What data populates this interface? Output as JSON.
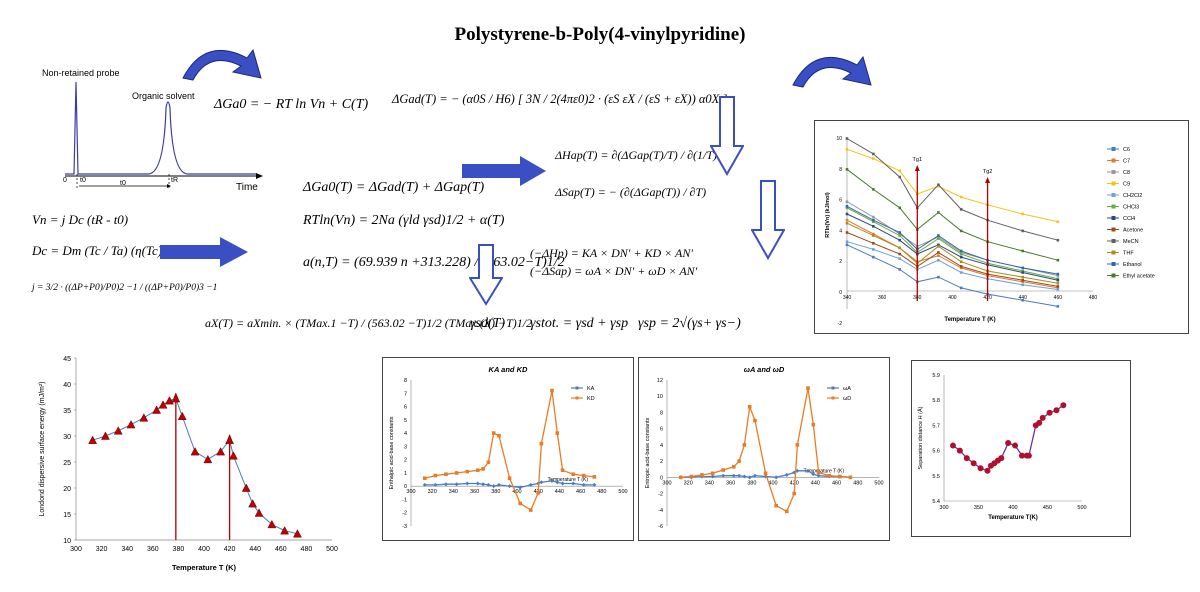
{
  "title": "Polystyrene-b-Poly(4-vinylpyridine)",
  "chromatogram": {
    "probe_label": "Non-retained probe",
    "solvent_label": "Organic solvent",
    "time_label": "Time",
    "t0_axis": "0",
    "t_mark": "t0",
    "t0_span": "t0",
    "tR_mark": "tR"
  },
  "equations": {
    "e1": "ΔGa0 = − RT ln Vn + C(T)",
    "e2": "ΔGad(T) = − (α0S / H6) [ 3N / 2(4πε0)2 · (εS εX / (εS + εX)) α0X ]",
    "e3": "ΔGa0(T) = ΔGad(T) + ΔGap(T)",
    "e4": "RTln(Vn) = 2Na (γld γsd)1/2 + α(T)",
    "e5": "a(n,T) = (69.939 n +313.228) / (563.02−T)1/2",
    "e6a": "ΔHap(T) = ∂(ΔGap(T)/T) / ∂(1/T)",
    "e6b": "ΔSap(T) = − (∂(ΔGap(T)) / ∂T)",
    "e7a": "(−ΔHp) = KA × DN′ + KD × AN′",
    "e7b": "(−ΔSap) = ωA × DN′ + ωD × AN′",
    "e8": "aX(T) = aXmin. × (TMax.1 −T) / (563.02 −T)1/2 (TMax.(X) −T)1/2",
    "e9": "γsd(T)",
    "e10": "γstot. = γsd + γsp",
    "e11": "γsp = 2√(γs+ γs−)",
    "vn": "Vn = j Dc (tR - t0)",
    "dc": "Dc = Dm (Tc / Ta) (η(Tc) / η(Ta))",
    "j": "j = 3/2 · ((ΔP+P0)/P0)2 −1 / ((ΔP+P0)/P0)3 −1"
  },
  "chart_top": {
    "type": "line",
    "ylabel": "RTln(Vn) (kJ/mol)",
    "xlabel": "Temperature T (K)",
    "x_ticks": [
      "340",
      "360",
      "380",
      "400",
      "420",
      "440",
      "460",
      "480"
    ],
    "x_first": "340",
    "xlim": [
      340,
      480
    ],
    "x_tick_values": [
      340,
      360,
      380,
      400,
      420,
      440,
      460,
      480
    ],
    "y_ticks": [
      "0",
      "2",
      "4",
      "6",
      "8",
      "10"
    ],
    "y_extra": "-2",
    "ylim": [
      0,
      10
    ],
    "tg1_label": "Tg1",
    "tg2_label": "Tg2",
    "tg1": 380,
    "tg2": 420,
    "series": [
      {
        "name": "C6",
        "color": "#4a7cc0",
        "values": [
          3.0,
          2.2,
          1.4,
          0.6,
          0.9,
          0.2,
          -0.2,
          -0.6,
          -1.0
        ]
      },
      {
        "name": "C7",
        "color": "#e07a2c",
        "values": [
          4.6,
          3.7,
          2.8,
          1.9,
          2.3,
          1.5,
          1.0,
          0.6,
          0.2
        ]
      },
      {
        "name": "C8",
        "color": "#9a9a9a",
        "values": [
          5.8,
          4.8,
          3.7,
          2.9,
          3.5,
          2.5,
          2.0,
          1.5,
          1.0
        ]
      },
      {
        "name": "C9",
        "color": "#f2c418",
        "values": [
          9.2,
          8.6,
          7.8,
          6.3,
          6.8,
          6.1,
          5.6,
          5.0,
          4.5
        ]
      },
      {
        "name": "CH2Cl2",
        "color": "#6fa3d8",
        "values": [
          3.2,
          2.7,
          2.1,
          1.4,
          2.0,
          1.2,
          0.8,
          0.4,
          0.1
        ]
      },
      {
        "name": "CHCl3",
        "color": "#6aaa44",
        "values": [
          5.4,
          4.5,
          3.6,
          2.5,
          3.4,
          2.4,
          1.8,
          1.3,
          0.8
        ]
      },
      {
        "name": "CCl4",
        "color": "#2b4b80",
        "values": [
          5.0,
          4.2,
          3.3,
          2.4,
          3.0,
          2.2,
          1.7,
          1.2,
          0.7
        ]
      },
      {
        "name": "Acetone",
        "color": "#9c4a1c",
        "values": [
          3.8,
          3.1,
          2.4,
          1.6,
          2.5,
          1.6,
          1.1,
          0.7,
          0.3
        ]
      },
      {
        "name": "MeCN",
        "color": "#606060",
        "values": [
          9.9,
          8.9,
          7.4,
          5.4,
          6.9,
          5.3,
          4.6,
          3.9,
          3.3
        ]
      },
      {
        "name": "THF",
        "color": "#b08a1c",
        "values": [
          4.4,
          3.6,
          2.8,
          1.8,
          2.9,
          1.9,
          1.3,
          0.9,
          0.5
        ]
      },
      {
        "name": "Ethanol",
        "color": "#2f6aa8",
        "values": [
          5.5,
          4.6,
          3.8,
          2.7,
          3.6,
          2.6,
          2.0,
          1.5,
          1.1
        ]
      },
      {
        "name": "Ethyl acetate",
        "color": "#4a7a2a",
        "values": [
          7.9,
          6.6,
          5.4,
          4.0,
          5.1,
          3.9,
          3.2,
          2.6,
          2.0
        ]
      }
    ]
  },
  "chart_london": {
    "type": "scatter",
    "ylabel": "Londond dispersive surface energy (mJ/m²)",
    "xlabel": "Temperature T (K)",
    "x_ticks": [
      "300",
      "320",
      "340",
      "360",
      "380",
      "400",
      "420",
      "440",
      "460",
      "480",
      "500"
    ],
    "y_ticks": [
      "10",
      "15",
      "20",
      "25",
      "30",
      "35",
      "40",
      "45"
    ],
    "xlim": [
      300,
      500
    ],
    "ylim": [
      10,
      45
    ],
    "marker_color": "#c00000",
    "x": [
      313,
      323,
      333,
      343,
      353,
      363,
      368,
      373,
      378,
      383,
      393,
      403,
      413,
      420,
      423,
      433,
      438,
      443,
      453,
      463,
      473
    ],
    "y": [
      29.2,
      30.0,
      31.0,
      32.2,
      33.5,
      35.0,
      36.0,
      36.8,
      37.2,
      33.8,
      27.0,
      25.5,
      27.0,
      29.2,
      26.2,
      20.0,
      17.0,
      15.2,
      13.0,
      11.8,
      11.2
    ],
    "arrows": [
      378,
      420
    ]
  },
  "chart_kakd": {
    "type": "line",
    "title": "KA and KD",
    "ylabel": "Enthalpic acid-base constants",
    "xlabel_inner": "Temperature T (K)",
    "x_ticks": [
      "300",
      "320",
      "340",
      "360",
      "380",
      "400",
      "420",
      "440",
      "460",
      "480",
      "500"
    ],
    "x_first": "300",
    "y_ticks": [
      "-3",
      "-2",
      "-1",
      "0",
      "1",
      "2",
      "3",
      "4",
      "5",
      "6",
      "7",
      "8"
    ],
    "xlim": [
      300,
      500
    ],
    "ylim": [
      -3,
      8
    ],
    "series": [
      {
        "name": "KA",
        "color": "#4a7cc0",
        "x": [
          313,
          323,
          333,
          343,
          353,
          363,
          368,
          373,
          378,
          383,
          393,
          403,
          413,
          420,
          423,
          433,
          438,
          443,
          453,
          463,
          473
        ],
        "values": [
          0.1,
          0.1,
          0.15,
          0.15,
          0.2,
          0.2,
          0.15,
          0.1,
          0.0,
          0.1,
          0.0,
          -0.1,
          0.1,
          0.2,
          0.3,
          0.4,
          0.3,
          0.2,
          0.2,
          0.1,
          0.1
        ]
      },
      {
        "name": "KD",
        "color": "#e87c26",
        "x": [
          313,
          323,
          333,
          343,
          353,
          363,
          368,
          373,
          378,
          383,
          393,
          403,
          413,
          420,
          423,
          433,
          438,
          443,
          453,
          463,
          473
        ],
        "values": [
          0.6,
          0.8,
          0.9,
          1.0,
          1.1,
          1.2,
          1.3,
          1.8,
          4.0,
          3.8,
          0.6,
          -1.3,
          -1.8,
          -0.5,
          3.2,
          7.2,
          4.0,
          1.2,
          0.9,
          0.8,
          0.7
        ]
      }
    ]
  },
  "chart_omega": {
    "type": "line",
    "title": "ωA and ωD",
    "ylabel": "Entropic acid-base constants",
    "xlabel_inner": "Temperature T (K)",
    "x_ticks": [
      "300",
      "320",
      "340",
      "360",
      "380",
      "400",
      "420",
      "440",
      "460",
      "480",
      "500"
    ],
    "y_ticks": [
      "-6",
      "-4",
      "-2",
      "0",
      "2",
      "4",
      "6",
      "8",
      "10",
      "12"
    ],
    "xlim": [
      300,
      500
    ],
    "ylim": [
      -6,
      12
    ],
    "series": [
      {
        "name": "ωA",
        "color": "#4a7cc0",
        "x": [
          313,
          323,
          333,
          343,
          353,
          363,
          368,
          373,
          378,
          383,
          393,
          403,
          413,
          420,
          423,
          433,
          438,
          443,
          453,
          463,
          473
        ],
        "values": [
          0.0,
          0.0,
          0.1,
          0.1,
          0.2,
          0.2,
          0.2,
          0.1,
          0.0,
          0.2,
          0.1,
          0.0,
          0.3,
          0.6,
          0.8,
          0.8,
          0.4,
          0.2,
          0.1,
          0.1,
          0.0
        ]
      },
      {
        "name": "ωD",
        "color": "#e87c26",
        "x": [
          313,
          323,
          333,
          343,
          353,
          363,
          368,
          373,
          378,
          383,
          393,
          403,
          413,
          420,
          423,
          433,
          438,
          443,
          453,
          463,
          473
        ],
        "values": [
          0.0,
          0.1,
          0.3,
          0.5,
          0.9,
          1.3,
          2.0,
          4.0,
          8.7,
          7.0,
          0.5,
          -3.5,
          -4.2,
          -2.0,
          4.0,
          11.0,
          6.5,
          0.6,
          0.2,
          0.1,
          0.0
        ]
      }
    ]
  },
  "chart_sep": {
    "type": "line",
    "ylabel": "Separation distance H (Å)",
    "xlabel": "Temperature T(K)",
    "x_ticks": [
      "300",
      "350",
      "400",
      "450",
      "500"
    ],
    "y_ticks": [
      "5.4",
      "5.5",
      "5.6",
      "5.7",
      "5.8",
      "5.9"
    ],
    "xlim": [
      300,
      500
    ],
    "ylim": [
      5.4,
      5.9
    ],
    "x": [
      313,
      323,
      333,
      343,
      353,
      363,
      368,
      373,
      378,
      383,
      393,
      403,
      413,
      420,
      423,
      433,
      438,
      443,
      453,
      463,
      473
    ],
    "values": [
      5.62,
      5.6,
      5.57,
      5.55,
      5.53,
      5.52,
      5.54,
      5.55,
      5.56,
      5.57,
      5.63,
      5.62,
      5.58,
      5.58,
      5.58,
      5.7,
      5.71,
      5.73,
      5.75,
      5.76,
      5.78
    ]
  }
}
